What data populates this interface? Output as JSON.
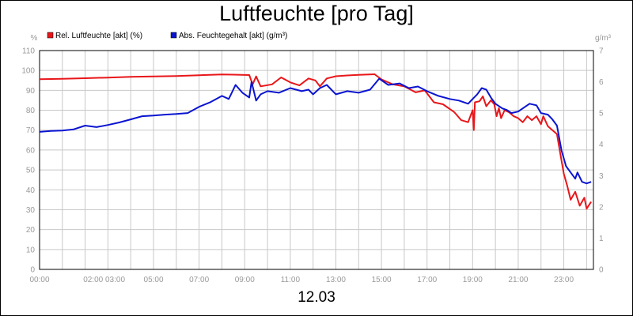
{
  "title": "Luftfeuchte [pro Tag]",
  "date": "12.03",
  "chart_data": {
    "type": "line",
    "title": "Luftfeuchte [pro Tag]",
    "xlabel": "12.03",
    "left_axis": {
      "unit": "%",
      "ylim": [
        0,
        110
      ],
      "ticks": [
        0,
        10,
        20,
        30,
        40,
        50,
        60,
        70,
        80,
        90,
        100,
        110
      ]
    },
    "right_axis": {
      "unit": "g/m³",
      "ylim": [
        0,
        7
      ],
      "ticks": [
        0,
        1,
        2,
        3,
        4,
        5,
        6,
        7
      ]
    },
    "x_ticks": [
      {
        "t": 0,
        "label": "00:00"
      },
      {
        "t": 2,
        "label": "02:00 03:00"
      },
      {
        "t": 5,
        "label": "05:00"
      },
      {
        "t": 7,
        "label": "07:00"
      },
      {
        "t": 9,
        "label": "09:00"
      },
      {
        "t": 11,
        "label": "11:00"
      },
      {
        "t": 13,
        "label": "13:00"
      },
      {
        "t": 15,
        "label": "15:00"
      },
      {
        "t": 17,
        "label": "17:00"
      },
      {
        "t": 19,
        "label": "19:00"
      },
      {
        "t": 21,
        "label": "21:00"
      },
      {
        "t": 23,
        "label": "23:00"
      }
    ],
    "x_range_hours": [
      0,
      24.3
    ],
    "grid": true,
    "legend_position": "top-left",
    "series": [
      {
        "name": "Rel. Luftfeuchte [akt] (%)",
        "axis": "left",
        "color": "#e8161a",
        "points": [
          [
            0,
            95.6
          ],
          [
            1,
            95.8
          ],
          [
            2,
            96.1
          ],
          [
            3,
            96.4
          ],
          [
            4,
            96.8
          ],
          [
            5,
            97.0
          ],
          [
            6,
            97.2
          ],
          [
            7,
            97.6
          ],
          [
            8,
            98.0
          ],
          [
            8.5,
            97.9
          ],
          [
            9.2,
            97.7
          ],
          [
            9.35,
            93
          ],
          [
            9.5,
            97
          ],
          [
            9.7,
            92
          ],
          [
            10.2,
            93
          ],
          [
            10.6,
            96.5
          ],
          [
            11,
            94
          ],
          [
            11.4,
            92.5
          ],
          [
            11.8,
            96
          ],
          [
            12.1,
            95
          ],
          [
            12.3,
            92
          ],
          [
            12.6,
            96
          ],
          [
            13,
            97.1
          ],
          [
            13.5,
            97.5
          ],
          [
            14,
            97.8
          ],
          [
            14.7,
            98.1
          ],
          [
            15.0,
            95.5
          ],
          [
            15.5,
            93
          ],
          [
            16,
            92
          ],
          [
            16.5,
            89
          ],
          [
            16.9,
            90
          ],
          [
            17.3,
            84
          ],
          [
            17.7,
            83
          ],
          [
            18.2,
            79
          ],
          [
            18.5,
            75
          ],
          [
            18.8,
            74
          ],
          [
            19.0,
            80
          ],
          [
            19.05,
            70
          ],
          [
            19.1,
            84
          ],
          [
            19.3,
            84.5
          ],
          [
            19.45,
            87
          ],
          [
            19.6,
            82
          ],
          [
            19.8,
            85
          ],
          [
            19.95,
            83
          ],
          [
            20.05,
            77
          ],
          [
            20.15,
            81
          ],
          [
            20.25,
            76
          ],
          [
            20.4,
            80
          ],
          [
            20.6,
            79
          ],
          [
            20.8,
            77
          ],
          [
            21.0,
            76
          ],
          [
            21.2,
            74
          ],
          [
            21.4,
            77
          ],
          [
            21.6,
            75
          ],
          [
            21.8,
            77
          ],
          [
            22.0,
            73
          ],
          [
            22.1,
            77
          ],
          [
            22.3,
            72
          ],
          [
            22.5,
            70
          ],
          [
            22.7,
            68
          ],
          [
            22.85,
            58
          ],
          [
            23.0,
            48
          ],
          [
            23.15,
            42
          ],
          [
            23.3,
            35
          ],
          [
            23.5,
            39
          ],
          [
            23.7,
            32
          ],
          [
            23.9,
            36
          ],
          [
            24.0,
            30.5
          ],
          [
            24.2,
            34
          ]
        ]
      },
      {
        "name": "Abs. Feuchtegehalt [akt] (g/m³)",
        "axis": "right",
        "color": "#0a14d0",
        "points": [
          [
            0,
            4.4
          ],
          [
            0.5,
            4.43
          ],
          [
            1,
            4.44
          ],
          [
            1.5,
            4.48
          ],
          [
            2,
            4.6
          ],
          [
            2.5,
            4.55
          ],
          [
            3,
            4.62
          ],
          [
            3.5,
            4.7
          ],
          [
            4,
            4.8
          ],
          [
            4.5,
            4.9
          ],
          [
            5,
            4.92
          ],
          [
            5.5,
            4.95
          ],
          [
            6,
            4.97
          ],
          [
            6.5,
            5.0
          ],
          [
            7,
            5.2
          ],
          [
            7.5,
            5.35
          ],
          [
            8,
            5.55
          ],
          [
            8.3,
            5.45
          ],
          [
            8.6,
            5.9
          ],
          [
            8.9,
            5.65
          ],
          [
            9.2,
            5.5
          ],
          [
            9.3,
            6.0
          ],
          [
            9.5,
            5.4
          ],
          [
            9.7,
            5.6
          ],
          [
            10,
            5.7
          ],
          [
            10.5,
            5.65
          ],
          [
            11,
            5.8
          ],
          [
            11.5,
            5.7
          ],
          [
            11.8,
            5.75
          ],
          [
            12.0,
            5.6
          ],
          [
            12.3,
            5.8
          ],
          [
            12.6,
            5.9
          ],
          [
            13,
            5.6
          ],
          [
            13.5,
            5.7
          ],
          [
            14,
            5.65
          ],
          [
            14.5,
            5.75
          ],
          [
            14.9,
            6.1
          ],
          [
            15.3,
            5.9
          ],
          [
            15.8,
            5.95
          ],
          [
            16.2,
            5.8
          ],
          [
            16.6,
            5.85
          ],
          [
            17,
            5.7
          ],
          [
            17.5,
            5.55
          ],
          [
            18,
            5.45
          ],
          [
            18.4,
            5.4
          ],
          [
            18.8,
            5.3
          ],
          [
            19.0,
            5.45
          ],
          [
            19.2,
            5.6
          ],
          [
            19.4,
            5.8
          ],
          [
            19.6,
            5.75
          ],
          [
            19.8,
            5.5
          ],
          [
            20,
            5.3
          ],
          [
            20.3,
            5.15
          ],
          [
            20.5,
            5.1
          ],
          [
            20.7,
            5.0
          ],
          [
            21,
            5.05
          ],
          [
            21.3,
            5.2
          ],
          [
            21.5,
            5.3
          ],
          [
            21.8,
            5.25
          ],
          [
            22.0,
            5.0
          ],
          [
            22.3,
            4.95
          ],
          [
            22.5,
            4.8
          ],
          [
            22.7,
            4.6
          ],
          [
            22.9,
            3.8
          ],
          [
            23.1,
            3.3
          ],
          [
            23.3,
            3.1
          ],
          [
            23.5,
            2.9
          ],
          [
            23.6,
            3.1
          ],
          [
            23.8,
            2.8
          ],
          [
            24.0,
            2.75
          ],
          [
            24.2,
            2.8
          ]
        ]
      }
    ]
  }
}
